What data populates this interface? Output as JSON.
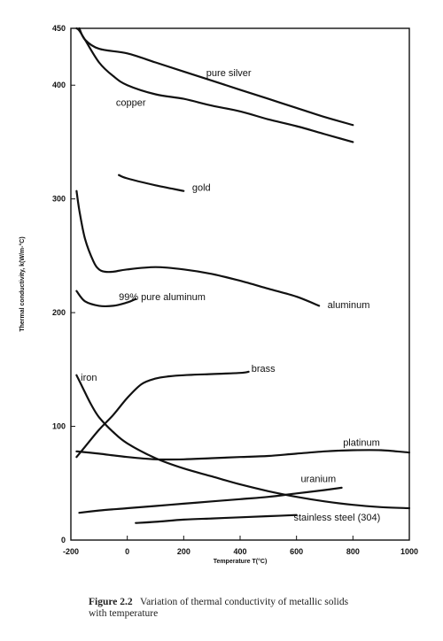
{
  "chart_data": {
    "type": "line",
    "title": "",
    "xlabel": "Temperature T(°C)",
    "ylabel": "Thermal conductivity, k(W/m-°C)",
    "xlim": [
      -200,
      1000
    ],
    "ylim": [
      0,
      450
    ],
    "x_ticks": [
      -200,
      0,
      200,
      400,
      600,
      800,
      1000
    ],
    "y_ticks": [
      0,
      100,
      200,
      300,
      400,
      450
    ],
    "grid": false,
    "legend": "none (series labeled directly on curves)",
    "series": [
      {
        "name": "pure silver",
        "label_at": [
          280,
          408
        ],
        "x": [
          -170,
          -150,
          -100,
          0,
          100,
          200,
          300,
          400,
          500,
          600,
          700,
          800
        ],
        "y": [
          450,
          440,
          432,
          428,
          420,
          412,
          404,
          396,
          388,
          380,
          372,
          365
        ]
      },
      {
        "name": "copper",
        "label_at": [
          -40,
          382
        ],
        "x": [
          -180,
          -170,
          -150,
          -100,
          -50,
          0,
          100,
          200,
          300,
          400,
          500,
          600,
          700,
          800
        ],
        "y": [
          450,
          448,
          440,
          420,
          408,
          400,
          392,
          388,
          382,
          377,
          370,
          364,
          357,
          350
        ]
      },
      {
        "name": "gold",
        "label_at": [
          230,
          307
        ],
        "x": [
          -30,
          0,
          100,
          200
        ],
        "y": [
          321,
          318,
          312,
          307
        ]
      },
      {
        "name": "aluminum",
        "label_at": [
          710,
          204
        ],
        "x": [
          -180,
          -170,
          -150,
          -120,
          -100,
          -80,
          -50,
          0,
          100,
          200,
          300,
          400,
          500,
          600,
          680
        ],
        "y": [
          307,
          290,
          265,
          245,
          238,
          236,
          236,
          238,
          240,
          238,
          234,
          228,
          221,
          214,
          206
        ]
      },
      {
        "name": "99% pure aluminum",
        "label_at": [
          -30,
          211
        ],
        "x": [
          -180,
          -150,
          -100,
          -50,
          0,
          30
        ],
        "y": [
          219,
          210,
          206,
          206,
          209,
          212
        ]
      },
      {
        "name": "brass",
        "label_at": [
          440,
          148
        ],
        "x": [
          -180,
          -150,
          -100,
          -50,
          0,
          50,
          100,
          150,
          200,
          300,
          400,
          430
        ],
        "y": [
          73,
          82,
          97,
          110,
          125,
          137,
          142,
          144,
          145,
          146,
          147,
          148
        ]
      },
      {
        "name": "iron",
        "label_at": [
          -165,
          140
        ],
        "x": [
          -180,
          -160,
          -130,
          -100,
          -50,
          0,
          100,
          200,
          300,
          400,
          500,
          600,
          700,
          800,
          900,
          1000
        ],
        "y": [
          145,
          135,
          120,
          108,
          95,
          85,
          72,
          63,
          56,
          49,
          43,
          38,
          34,
          31,
          29,
          28
        ]
      },
      {
        "name": "platinum",
        "label_at": [
          765,
          83
        ],
        "x": [
          -180,
          -100,
          0,
          100,
          200,
          300,
          400,
          500,
          600,
          700,
          800,
          900,
          1000
        ],
        "y": [
          78,
          76,
          73,
          71,
          71,
          72,
          73,
          74,
          76,
          78,
          79,
          79,
          77
        ]
      },
      {
        "name": "uranium",
        "label_at": [
          615,
          51
        ],
        "x": [
          -170,
          -100,
          0,
          100,
          200,
          300,
          400,
          500,
          600,
          700,
          760
        ],
        "y": [
          24,
          26,
          28,
          30,
          32,
          34,
          36,
          38,
          41,
          44,
          46
        ]
      },
      {
        "name": "stainless steel (304)",
        "label_at": [
          590,
          17
        ],
        "x": [
          30,
          100,
          200,
          300,
          400,
          500,
          600
        ],
        "y": [
          15,
          16,
          18,
          19,
          20,
          21,
          22
        ]
      }
    ]
  },
  "caption": {
    "figure_number": "Figure 2.2",
    "text_line1": "Variation of thermal conductivity of metallic solids",
    "text_line2": "with temperature"
  }
}
